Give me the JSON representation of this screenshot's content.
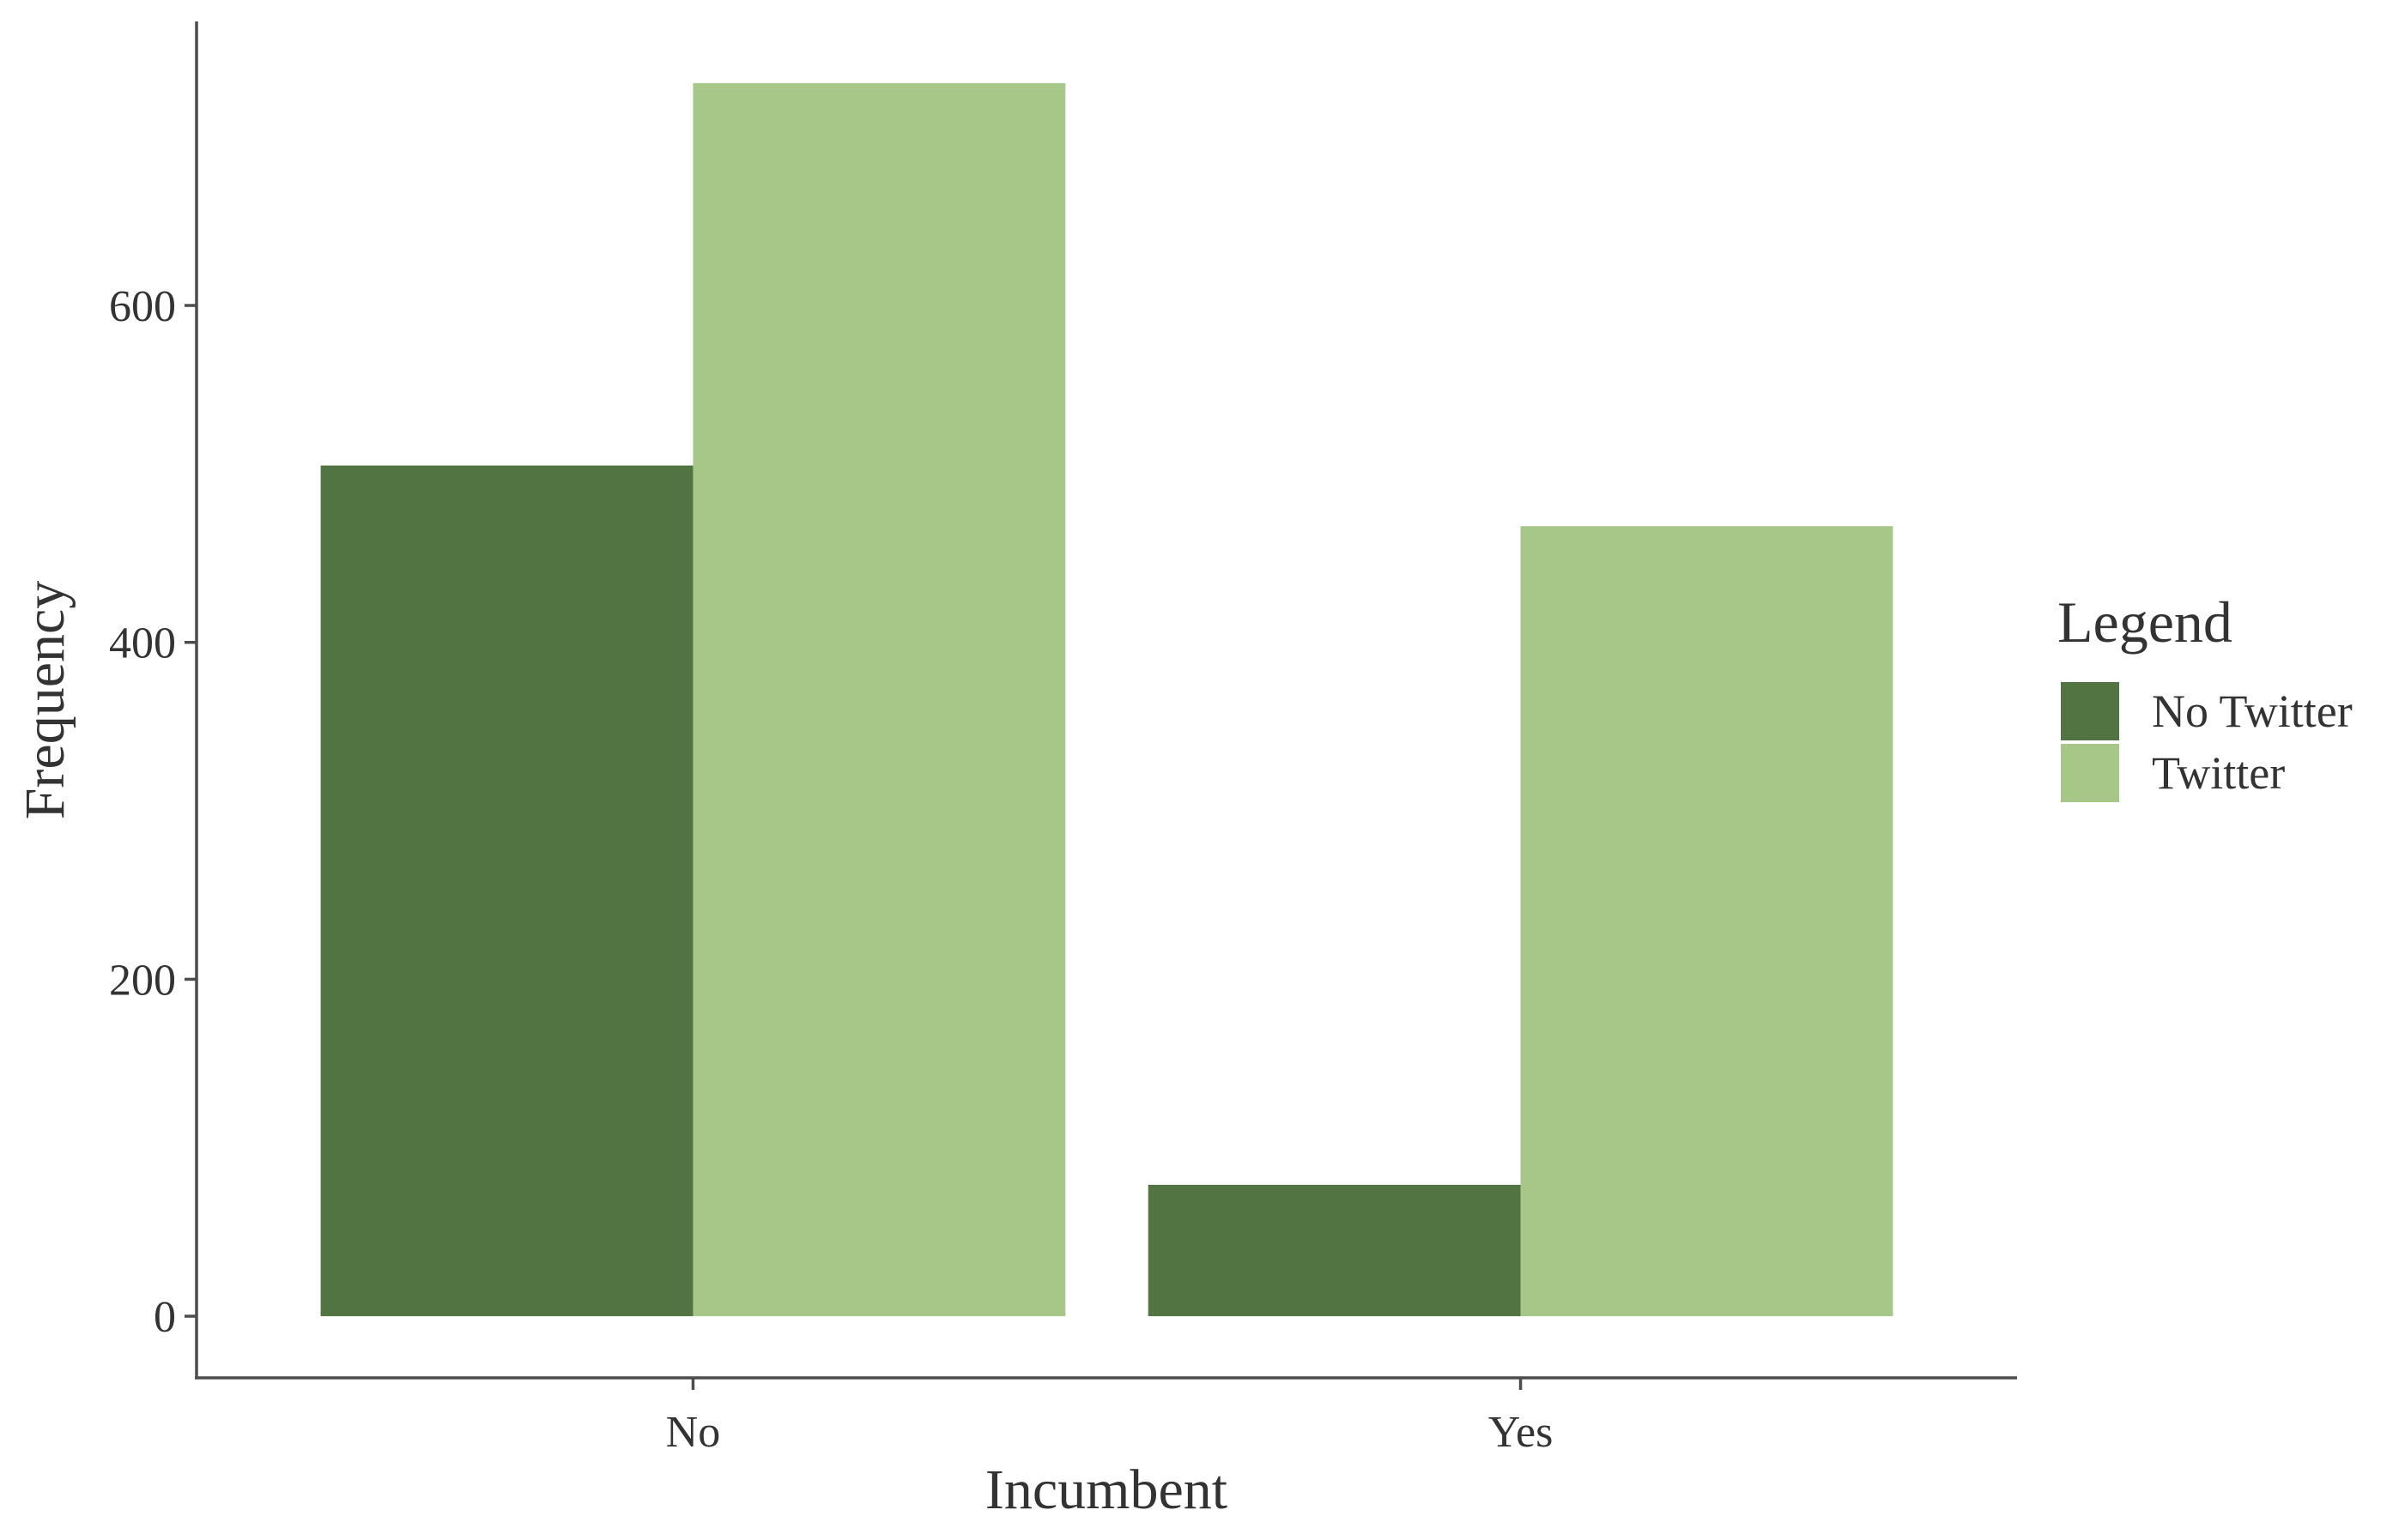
{
  "chart_data": {
    "type": "bar",
    "categories": [
      "No",
      "Yes"
    ],
    "series": [
      {
        "name": "No Twitter",
        "values": [
          505,
          78
        ],
        "color": "#527342"
      },
      {
        "name": "Twitter",
        "values": [
          732,
          469
        ],
        "color": "#a6c787"
      }
    ],
    "title": "",
    "xlabel": "Incumbent",
    "ylabel": "Frequency",
    "ylim": [
      -36.6,
      768.6
    ],
    "yticks": [
      0,
      200,
      400,
      600
    ],
    "legend": {
      "title": "Legend",
      "position": "right"
    },
    "grid": false
  }
}
